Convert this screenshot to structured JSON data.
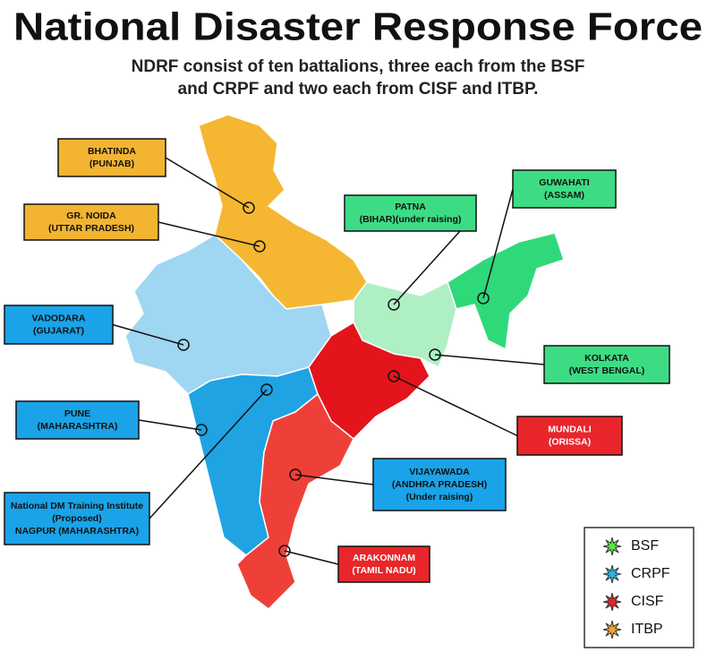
{
  "title": "National Disaster Response Force",
  "subtitle": [
    "NDRF consist of ten battalions, three each from the BSF",
    "and CRPF and two each from CISF and ITBP."
  ],
  "locations": [
    {
      "lines": [
        "BHATINDA",
        "(PUNJAB)"
      ]
    },
    {
      "lines": [
        "GR. NOIDA",
        "(UTTAR PRADESH)"
      ]
    },
    {
      "lines": [
        "VADODARA",
        "(GUJARAT)"
      ]
    },
    {
      "lines": [
        "PUNE",
        "(MAHARASHTRA)"
      ]
    },
    {
      "lines": [
        "National DM Training Institute",
        "(Proposed)",
        "NAGPUR (MAHARASHTRA)"
      ]
    },
    {
      "lines": [
        "PATNA",
        "(BIHAR)(under raising)"
      ]
    },
    {
      "lines": [
        "GUWAHATI",
        "(ASSAM)"
      ]
    },
    {
      "lines": [
        "KOLKATA",
        "(WEST BENGAL)"
      ]
    },
    {
      "lines": [
        "MUNDALI",
        "(ORISSA)"
      ]
    },
    {
      "lines": [
        "VIJAYAWADA",
        "(ANDHRA PRADESH)",
        "(Under raising)"
      ]
    },
    {
      "lines": [
        "ARAKONNAM",
        "(TAMIL NADU)"
      ]
    }
  ],
  "legend": [
    {
      "label": "BSF",
      "color": "#5ee04a"
    },
    {
      "label": "CRPF",
      "color": "#2bb3ea"
    },
    {
      "label": "CISF",
      "color": "#e5262b"
    },
    {
      "label": "ITBP",
      "color": "#f2a12b"
    }
  ]
}
